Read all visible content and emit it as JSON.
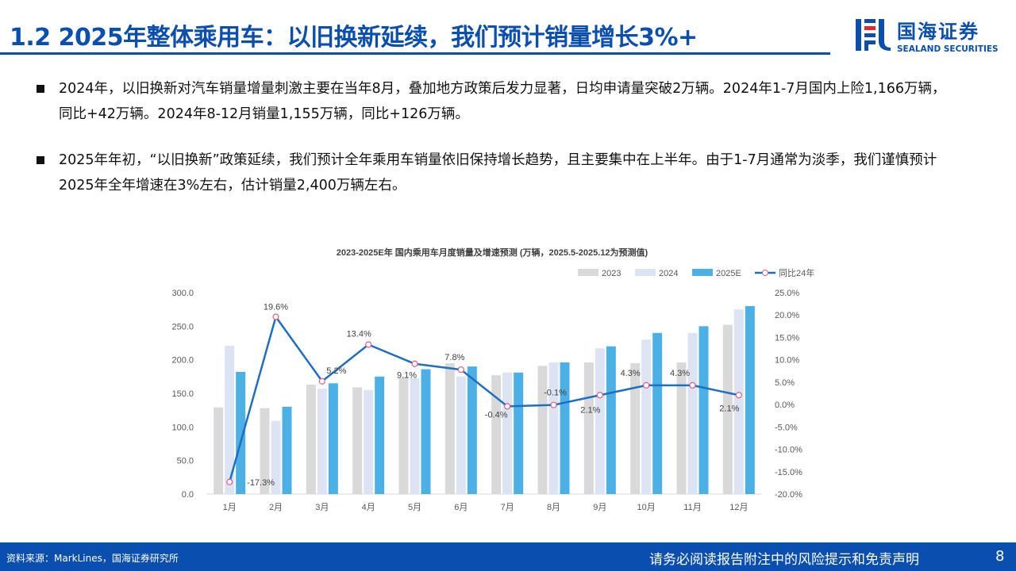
{
  "header": {
    "title": "1.2 2025年整体乘用车：以旧换新延续，我们预计销量增长3%+",
    "logo_cn": "国海证券",
    "logo_en": "SEALAND SECURITIES"
  },
  "bullets": [
    "2024年，以旧换新对汽车销量增量刺激主要在当年8月，叠加地方政策后发力显著，日均申请量突破2万辆。2024年1-7月国内上险1,166万辆，同比+42万辆。2024年8-12月销量1,155万辆，同比+126万辆。",
    "2025年年初，“以旧换新”政策延续，我们预计全年乘用车销量依旧保持增长趋势，且主要集中在上半年。由于1-7月通常为淡季，我们谨慎预计2025年全年增速在3%左右，估计销量2,400万辆左右。"
  ],
  "chart_data": {
    "type": "bar",
    "title": "2023-2025E年 国内乘用车月度销量及增速预测 (万辆，2025.5-2025.12为预测值)",
    "categories": [
      "1月",
      "2月",
      "3月",
      "4月",
      "5月",
      "6月",
      "7月",
      "8月",
      "9月",
      "10月",
      "11月",
      "12月"
    ],
    "series": [
      {
        "name": "2023",
        "type": "bar",
        "color": "#d9d9d9",
        "values": [
          129,
          128,
          163,
          159,
          174,
          195,
          177,
          191,
          196,
          195,
          196,
          252
        ]
      },
      {
        "name": "2024",
        "type": "bar",
        "color": "#dce3f3",
        "values": [
          221,
          109,
          157,
          155,
          173,
          175,
          181,
          196,
          217,
          230,
          240,
          275
        ]
      },
      {
        "name": "2025E",
        "type": "bar",
        "color": "#4bb0e6",
        "values": [
          182,
          130,
          165,
          175,
          186,
          190,
          181,
          196,
          220,
          240,
          250,
          280
        ]
      },
      {
        "name": "同比24年",
        "type": "line",
        "axis": "right",
        "color": "#1f6fc0",
        "values": [
          -17.3,
          19.6,
          5.2,
          13.4,
          9.1,
          7.8,
          -0.4,
          -0.1,
          2.1,
          4.3,
          4.3,
          2.1
        ]
      }
    ],
    "point_labels": [
      "-17.3%",
      "19.6%",
      "5.2%",
      "13.4%",
      "9.1%",
      "7.8%",
      "-0.4%",
      "-0.1%",
      "2.1%",
      "4.3%",
      "4.3%",
      "2.1%"
    ],
    "y_left": {
      "min": 0,
      "max": 300,
      "ticks": [
        "0.0",
        "50.0",
        "100.0",
        "150.0",
        "200.0",
        "250.0",
        "300.0"
      ]
    },
    "y_right": {
      "min": -20,
      "max": 25,
      "ticks": [
        "-20.0%",
        "-15.0%",
        "-10.0%",
        "-5.0%",
        "0.0%",
        "5.0%",
        "10.0%",
        "15.0%",
        "20.0%",
        "25.0%"
      ]
    },
    "legend": "top-right",
    "grid": false
  },
  "footer": {
    "source": "资料来源：MarkLines，国海证券研究所",
    "disclaimer": "请务必阅读报告附注中的风险提示和免责声明",
    "page": "8"
  }
}
